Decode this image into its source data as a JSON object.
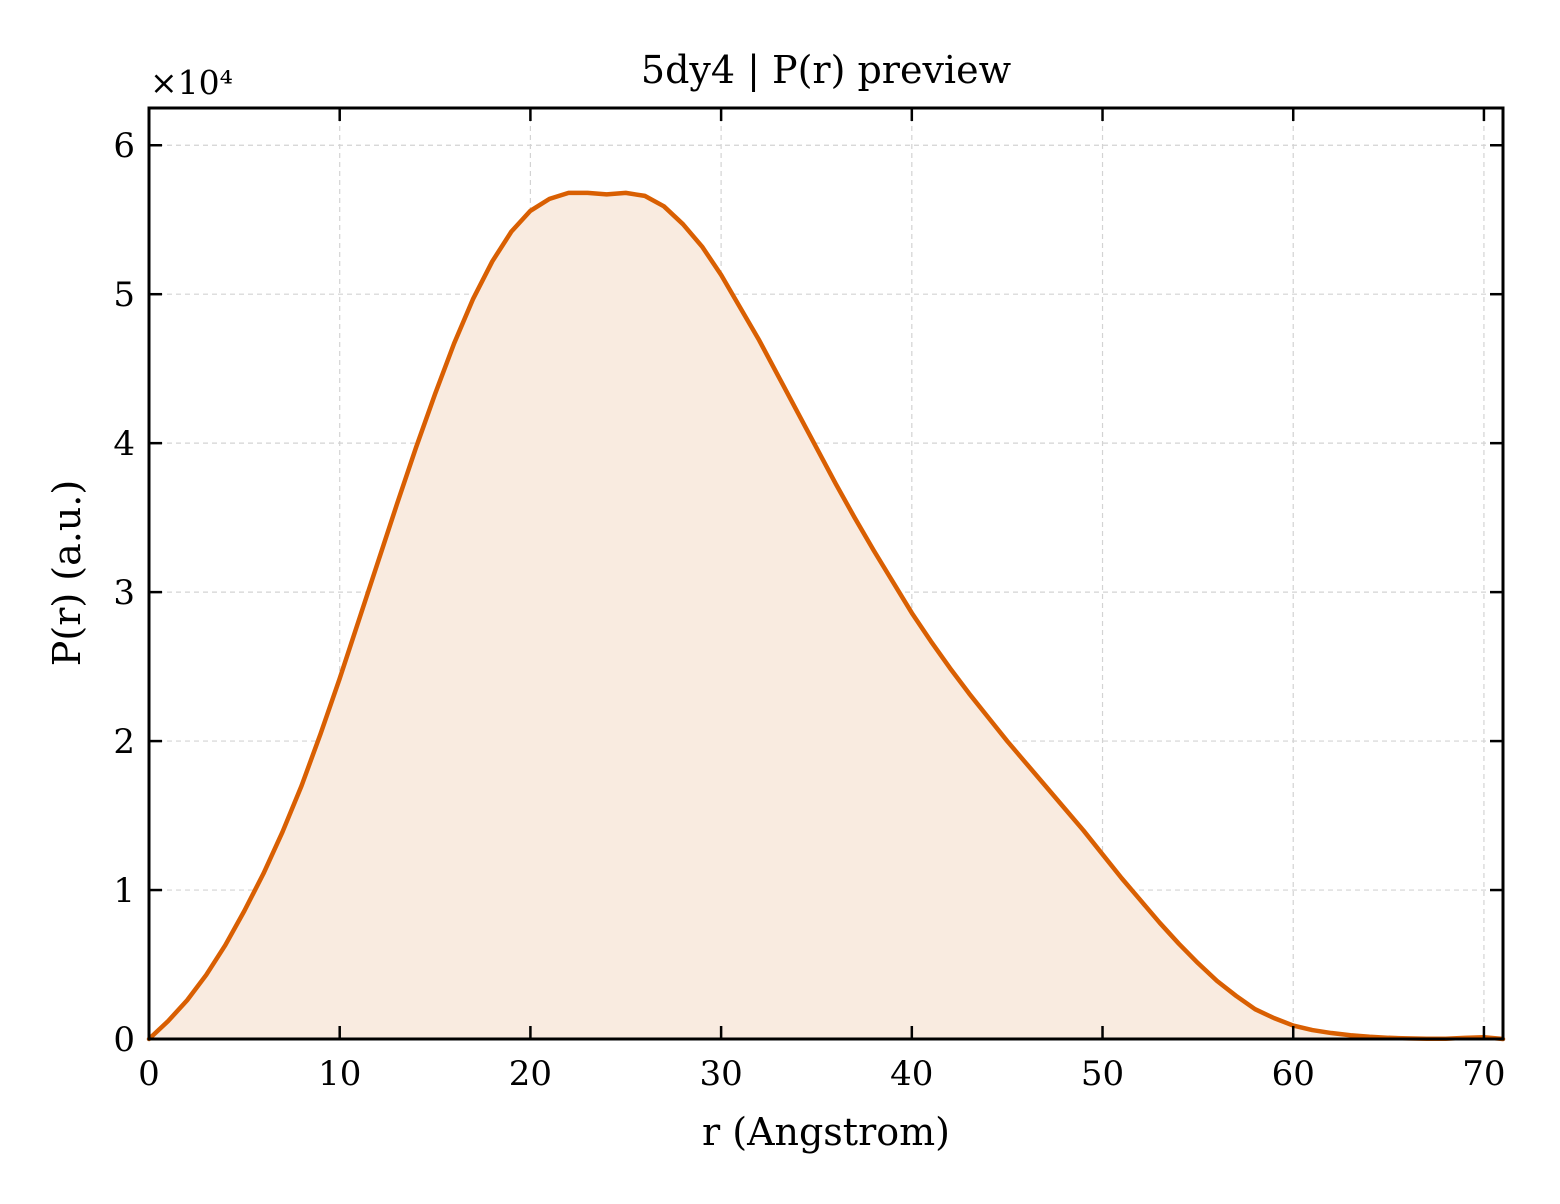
{
  "chart_data": {
    "type": "area",
    "title": "5dy4 | P(r) preview",
    "xlabel": "r (Angstrom)",
    "ylabel": "P(r) (a.u.)",
    "y_multiplier_label": "×10⁴",
    "y_scale_factor": 10000,
    "xlim": [
      0,
      71
    ],
    "ylim": [
      0,
      62500
    ],
    "x_ticks": [
      0,
      10,
      20,
      30,
      40,
      50,
      60,
      70
    ],
    "y_ticks": [
      0,
      10000,
      20000,
      30000,
      40000,
      50000,
      60000
    ],
    "x_tick_labels": [
      "0",
      "10",
      "20",
      "30",
      "40",
      "50",
      "60",
      "70"
    ],
    "y_tick_labels": [
      "0",
      "1",
      "2",
      "3",
      "4",
      "5",
      "6"
    ],
    "grid": true,
    "legend": "none",
    "line_color": "#d95f02",
    "fill_color": "#f9ebe0",
    "series": [
      {
        "x": [
          0,
          1,
          2,
          3,
          4,
          5,
          6,
          7,
          8,
          9,
          10,
          11,
          12,
          13,
          14,
          15,
          16,
          17,
          18,
          19,
          20,
          21,
          22,
          23,
          24,
          25,
          26,
          27,
          28,
          29,
          30,
          31,
          32,
          33,
          34,
          35,
          36,
          37,
          38,
          39,
          40,
          41,
          42,
          43,
          44,
          45,
          46,
          47,
          48,
          49,
          50,
          51,
          52,
          53,
          54,
          55,
          56,
          57,
          58,
          59,
          60,
          61,
          62,
          63,
          64,
          65,
          66,
          67,
          68,
          69,
          70,
          71
        ],
        "y": [
          0,
          1200,
          2600,
          4300,
          6300,
          8600,
          11100,
          13900,
          17000,
          20500,
          24200,
          28100,
          32000,
          35900,
          39700,
          43300,
          46700,
          49700,
          52200,
          54200,
          55600,
          56400,
          56800,
          56800,
          56700,
          56800,
          56600,
          55900,
          54700,
          53200,
          51300,
          49100,
          46900,
          44500,
          42100,
          39700,
          37300,
          35000,
          32800,
          30700,
          28600,
          26700,
          24900,
          23200,
          21600,
          20000,
          18500,
          17000,
          15500,
          14000,
          12400,
          10800,
          9300,
          7800,
          6400,
          5100,
          3900,
          2900,
          2000,
          1400,
          900,
          600,
          400,
          250,
          150,
          80,
          40,
          20,
          20,
          80,
          120,
          0
        ]
      }
    ]
  }
}
